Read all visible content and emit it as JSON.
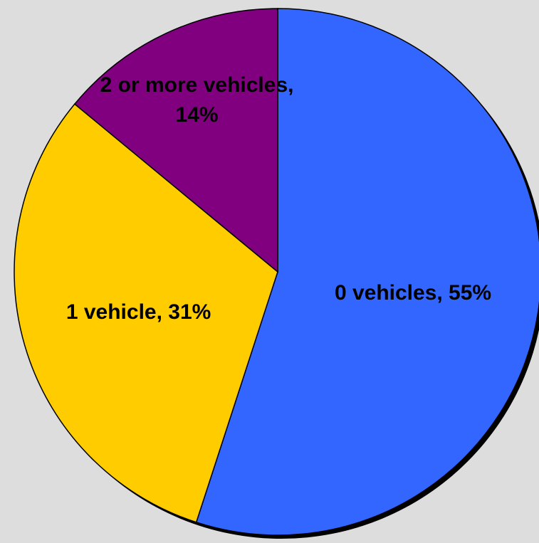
{
  "chart_data": {
    "type": "pie",
    "categories": [
      "0 vehicles",
      "1 vehicle",
      "2 or more vehicles"
    ],
    "values": [
      55,
      31,
      14
    ],
    "value_labels": [
      "0 vehicles, 55%",
      "1 vehicle, 31%",
      "2 or more vehicles, 14%"
    ],
    "colors": [
      "#3366ff",
      "#ffcc00",
      "#800080"
    ]
  }
}
